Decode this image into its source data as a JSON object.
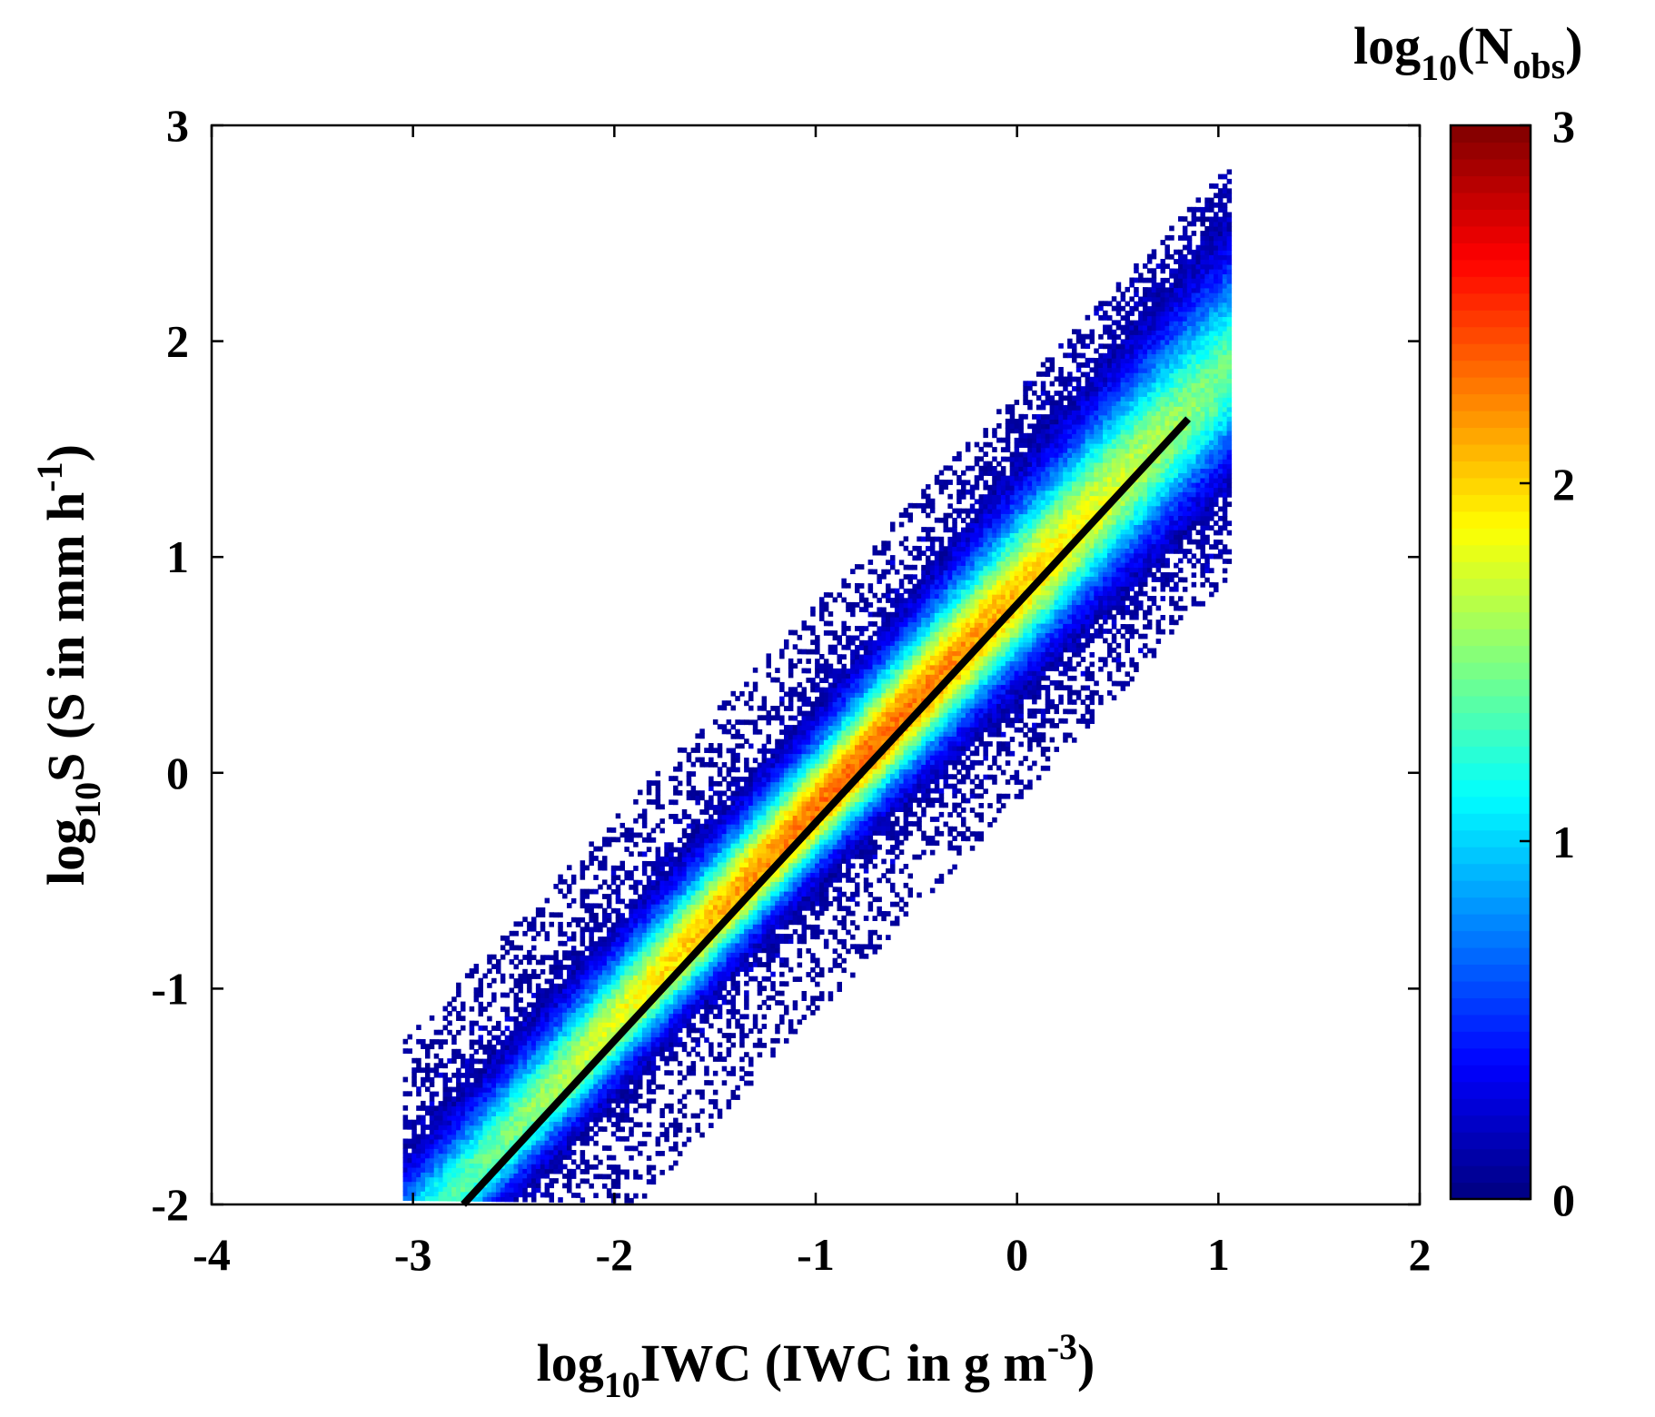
{
  "chart_data": {
    "type": "heatmap",
    "title": "",
    "xlabel": {
      "prefix": "log",
      "sub": "10",
      "main": "IWC (IWC in g m",
      "sup": "-3",
      "suffix": ")"
    },
    "ylabel": {
      "prefix": "log",
      "sub": "10",
      "main": "S (S in mm h",
      "sup": "-1",
      "suffix": ")"
    },
    "xlim": [
      -4,
      2
    ],
    "ylim": [
      -2,
      3
    ],
    "x_ticks": [
      -4,
      -3,
      -2,
      -1,
      0,
      1,
      2
    ],
    "x_tick_labels": [
      "-4",
      "-3",
      "-2",
      "-1",
      "0",
      "1",
      "2"
    ],
    "y_ticks": [
      -2,
      -1,
      0,
      1,
      2,
      3
    ],
    "y_tick_labels": [
      "-2",
      "-1",
      "0",
      "1",
      "2",
      "3"
    ],
    "grid": false,
    "colorbar": {
      "title_prefix": "log",
      "title_sub": "10",
      "title_main": "(N",
      "title_sub2": "obs",
      "title_suffix": ")",
      "range": [
        0,
        3
      ],
      "ticks": [
        0,
        1,
        2,
        3
      ],
      "tick_labels": [
        "0",
        "1",
        "2",
        "3"
      ],
      "colormap": "jet"
    },
    "density_model": {
      "description": "2D histogram of log10(S) vs log10(IWC); counts concentrated along a linear ridge",
      "x_range": [
        -3.05,
        1.05
      ],
      "ridge_slope": 0.99,
      "ridge_intercept_at_x0": 0.82,
      "peak_log10_count": 2.3,
      "peak_x": -0.8
    },
    "fit_line": {
      "label": "fit",
      "x": [
        -2.75,
        0.85
      ],
      "y": [
        -2.0,
        1.64
      ],
      "color": "#000000"
    }
  }
}
